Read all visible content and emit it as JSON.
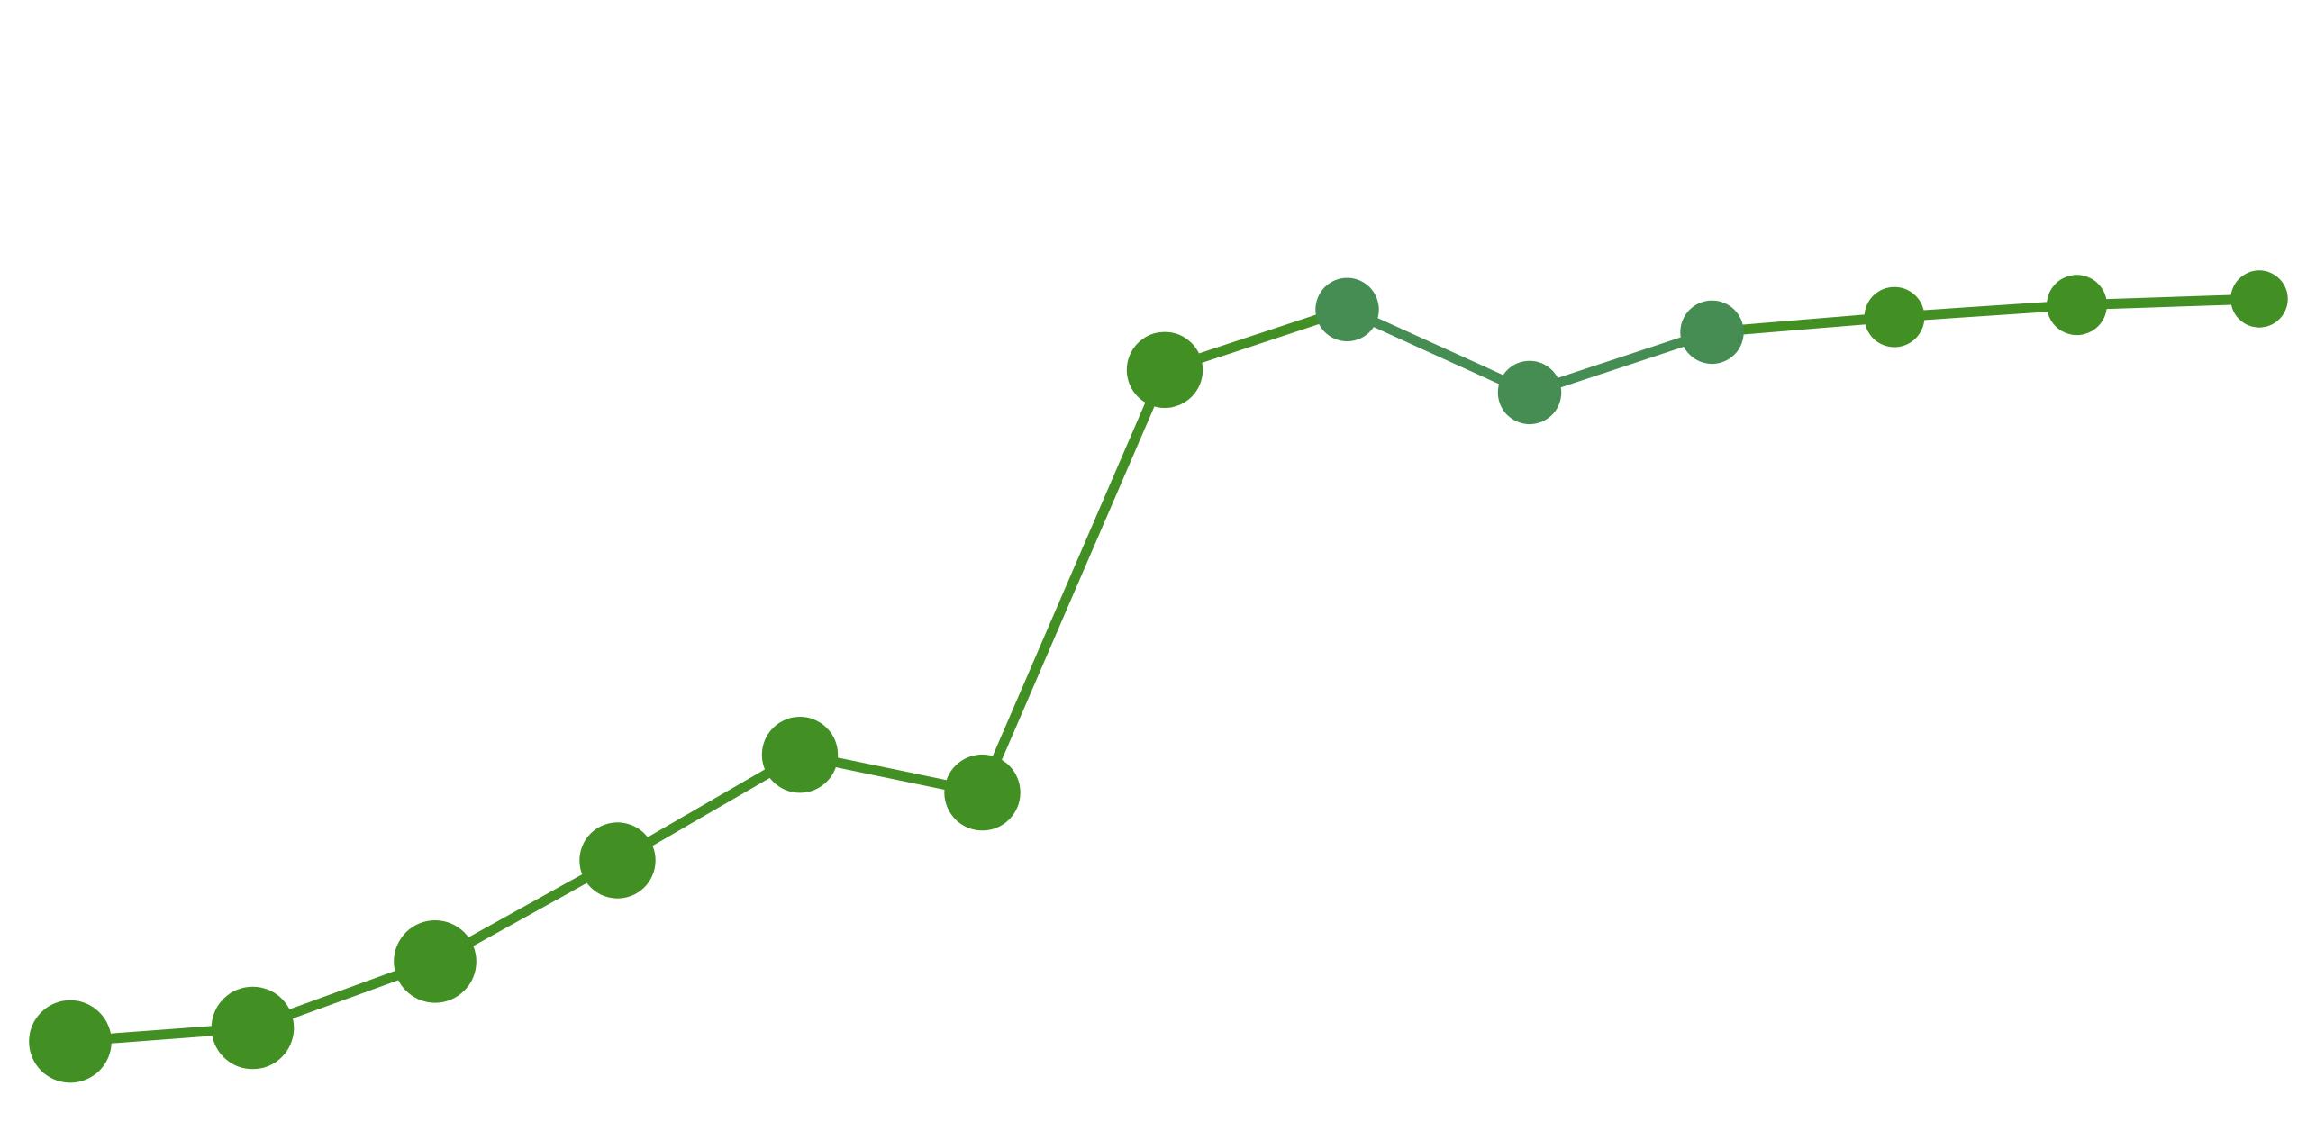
{
  "chart_data": {
    "type": "line",
    "title": "",
    "xlabel": "",
    "ylabel": "",
    "x": [
      1,
      2,
      3,
      4,
      5,
      6,
      7,
      8,
      9,
      10,
      11,
      12,
      13
    ],
    "series": [
      {
        "values": [
          0.5,
          1.4,
          5.8,
          12.5,
          19.5,
          17.0,
          45.0,
          49.0,
          43.5,
          47.5,
          48.5,
          49.3,
          49.7
        ],
        "sizes": [
          1.3,
          1.3,
          1.3,
          1.2,
          1.2,
          1.2,
          1.2,
          1.0,
          1.0,
          1.0,
          0.95,
          0.95,
          0.9
        ],
        "line_color": "#428f24",
        "point_color": "#428f24",
        "accent_color": "#468d53",
        "accent_points": [
          7,
          8,
          9
        ]
      }
    ],
    "xlim": [
      1,
      13
    ],
    "ylim": [
      0,
      50
    ],
    "grid": false,
    "legend": "none",
    "axes_visible": false
  }
}
